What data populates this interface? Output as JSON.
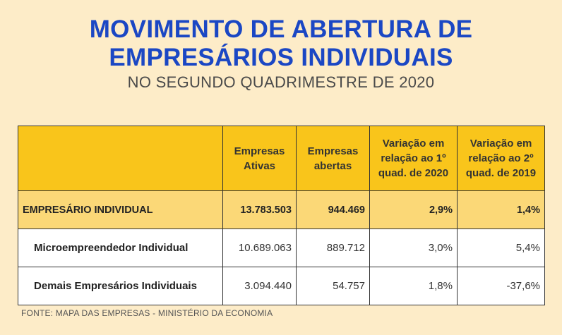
{
  "header": {
    "title_line1": "MOVIMENTO DE ABERTURA DE",
    "title_line2": "EMPRESÁRIOS INDIVIDUAIS",
    "subtitle": "NO SEGUNDO QUADRIMESTRE DE 2020"
  },
  "table": {
    "columns": [
      "",
      "Empresas Ativas",
      "Empresas abertas",
      "Variação em relação ao 1º quad. de 2020",
      "Variação em relação ao 2º quad. de 2019"
    ],
    "rows": [
      {
        "label": "EMPRESÁRIO INDIVIDUAL",
        "ativas": "13.783.503",
        "abertas": "944.469",
        "var_q1_2020": "2,9%",
        "var_q2_2019": "1,4%"
      },
      {
        "label": "Microempreendedor Individual",
        "ativas": "10.689.063",
        "abertas": "889.712",
        "var_q1_2020": "3,0%",
        "var_q2_2019": "5,4%"
      },
      {
        "label": "Demais Empresários Individuais",
        "ativas": "3.094.440",
        "abertas": "54.757",
        "var_q1_2020": "1,8%",
        "var_q2_2019": "-37,6%"
      }
    ]
  },
  "footer": {
    "source": "FONTE: MAPA DAS EMPRESAS - MINISTÉRIO DA ECONOMIA"
  },
  "colors": {
    "background": "#fdecc8",
    "title": "#1b47c4",
    "header_row": "#f9c51b",
    "total_row": "#fbd877",
    "sub_row": "#ffffff"
  }
}
